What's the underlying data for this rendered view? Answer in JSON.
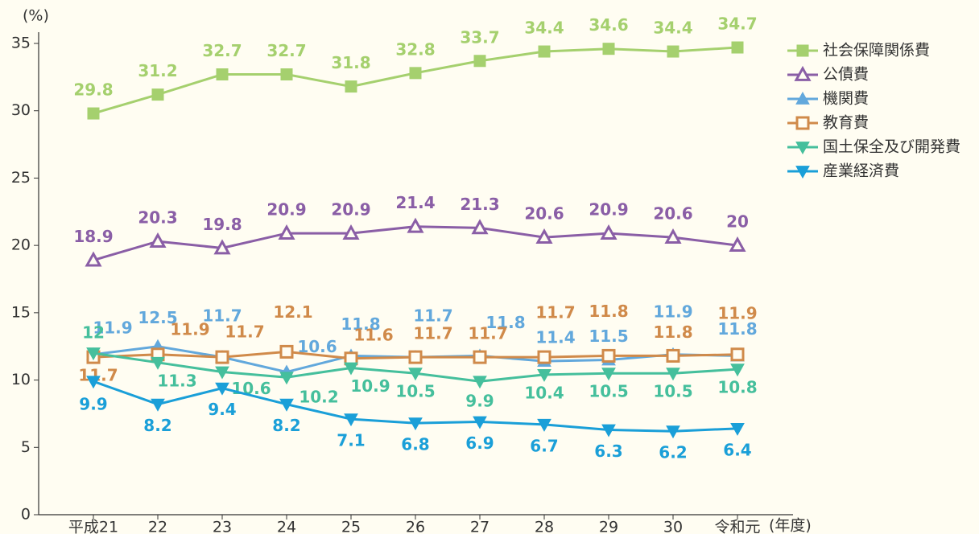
{
  "chart_data": {
    "type": "line",
    "y_label": "(%)",
    "x_label": "(年度)",
    "categories": [
      "平成21",
      "22",
      "23",
      "24",
      "25",
      "26",
      "27",
      "28",
      "29",
      "30",
      "令和元"
    ],
    "ylim": [
      0,
      35
    ],
    "yticks": [
      0,
      5,
      10,
      15,
      20,
      25,
      30,
      35
    ],
    "series": [
      {
        "name": "社会保障関係費",
        "color": "#a5d06e",
        "marker": "square",
        "filled": true,
        "values": [
          29.8,
          31.2,
          32.7,
          32.7,
          31.8,
          32.8,
          33.7,
          34.4,
          34.6,
          34.4,
          34.7
        ]
      },
      {
        "name": "公債費",
        "color": "#8a5ea6",
        "marker": "triangle",
        "filled": false,
        "values": [
          18.9,
          20.3,
          19.8,
          20.9,
          20.9,
          21.4,
          21.3,
          20.6,
          20.9,
          20.6,
          20.0
        ]
      },
      {
        "name": "機関費",
        "color": "#62a8dc",
        "marker": "triangle",
        "filled": true,
        "values": [
          11.9,
          12.5,
          11.7,
          10.6,
          11.8,
          11.7,
          11.8,
          11.4,
          11.5,
          11.9,
          11.8
        ]
      },
      {
        "name": "教育費",
        "color": "#d08a4a",
        "marker": "square",
        "filled": false,
        "values": [
          11.7,
          11.9,
          11.7,
          12.1,
          11.6,
          11.7,
          11.7,
          11.7,
          11.8,
          11.8,
          11.9
        ]
      },
      {
        "name": "国土保全及び開発費",
        "color": "#45bf9c",
        "marker": "triangle-down",
        "filled": true,
        "values": [
          12.0,
          11.3,
          10.6,
          10.2,
          10.9,
          10.5,
          9.9,
          10.4,
          10.5,
          10.5,
          10.8
        ]
      },
      {
        "name": "産業経済費",
        "color": "#1a9fd8",
        "marker": "triangle-down",
        "filled": true,
        "values": [
          9.9,
          8.2,
          9.4,
          8.2,
          7.1,
          6.8,
          6.9,
          6.7,
          6.3,
          6.2,
          6.4
        ]
      }
    ]
  }
}
